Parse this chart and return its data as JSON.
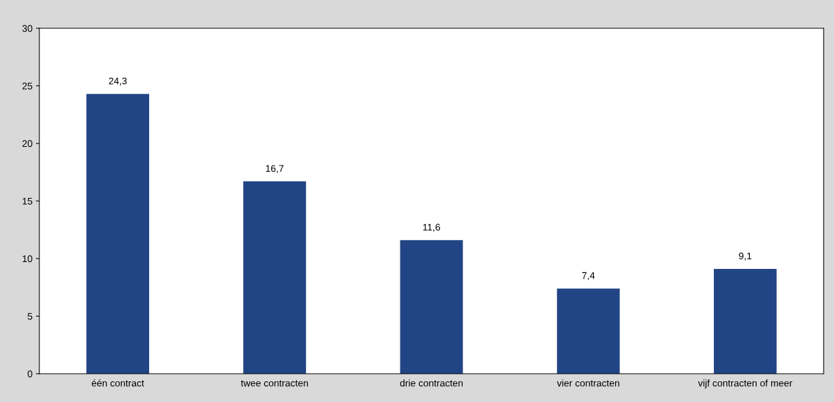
{
  "chart_data": {
    "type": "bar",
    "categories": [
      "één contract",
      "twee contracten",
      "drie contracten",
      "vier contracten",
      "vijf contracten of meer"
    ],
    "values": [
      24.3,
      16.7,
      11.6,
      7.4,
      9.1
    ],
    "value_labels": [
      "24,3",
      "16,7",
      "11,6",
      "7,4",
      "9,1"
    ],
    "color": "#214485",
    "ylim": [
      0,
      30
    ],
    "yticks": [
      0,
      5,
      10,
      15,
      20,
      25,
      30
    ],
    "grid": false,
    "legend": false
  }
}
